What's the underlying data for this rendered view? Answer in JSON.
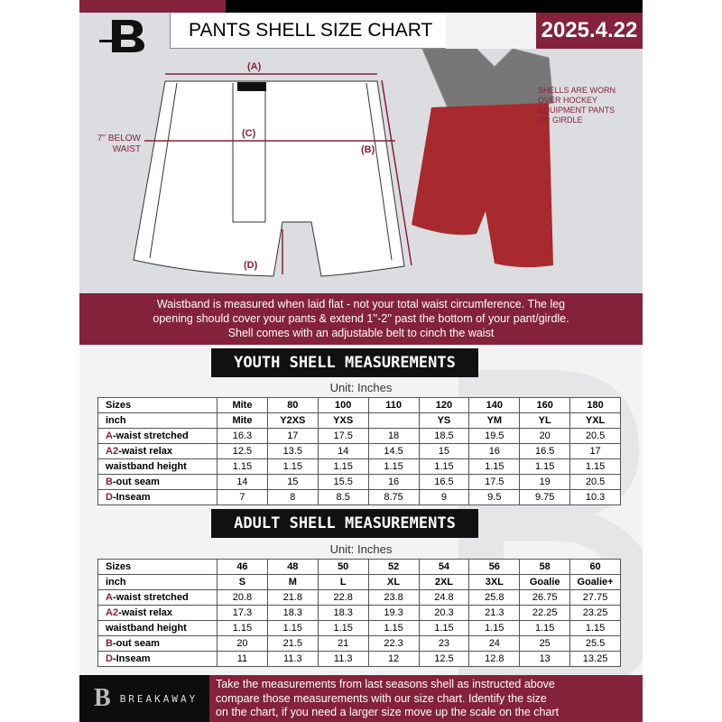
{
  "header": {
    "title": "PANTS SHELL SIZE CHART",
    "date": "2025.4.22"
  },
  "diagram": {
    "label_a": "(A)",
    "label_b": "(B)",
    "label_c": "(C)",
    "label_d": "(D)",
    "c_note": [
      "7'' BELOW",
      "WAIST"
    ],
    "worn_note": [
      "SHELLS ARE WORN",
      "OVER HOCKEY",
      "EQUIPMENT PANTS",
      "OR GIRDLE"
    ]
  },
  "banner": {
    "lines": [
      "Waistband is measured when laid flat - not your total waist circumference. The leg",
      "opening should cover your pants & extend 1''-2'' past the bottom of your pant/girdle.",
      "Shell comes with an adjustable belt to cinch the waist"
    ]
  },
  "youth": {
    "title": "YOUTH SHELL MEASUREMENTS",
    "unit": "Unit: Inches",
    "rows": [
      {
        "pre": "",
        "label": "Sizes",
        "cells": [
          "Mite",
          "80",
          "100",
          "110",
          "120",
          "140",
          "160",
          "180"
        ]
      },
      {
        "pre": "",
        "label": "inch",
        "cells": [
          "Mite",
          "Y2XS",
          "YXS",
          "",
          "YS",
          "YM",
          "YL",
          "YXL"
        ]
      },
      {
        "pre": "A",
        "label": "-waist stretched",
        "cells": [
          "16.3",
          "17",
          "17.5",
          "18",
          "18.5",
          "19.5",
          "20",
          "20.5"
        ]
      },
      {
        "pre": "A2",
        "label": "-waist relax",
        "cells": [
          "12.5",
          "13.5",
          "14",
          "14.5",
          "15",
          "16",
          "16.5",
          "17"
        ]
      },
      {
        "pre": "",
        "label": "waistband height",
        "cells": [
          "1.15",
          "1.15",
          "1.15",
          "1.15",
          "1.15",
          "1.15",
          "1.15",
          "1.15"
        ]
      },
      {
        "pre": "B",
        "label": "-out seam",
        "cells": [
          "14",
          "15",
          "15.5",
          "16",
          "16.5",
          "17.5",
          "19",
          "20.5"
        ]
      },
      {
        "pre": "D",
        "label": "-Inseam",
        "cells": [
          "7",
          "8",
          "8.5",
          "8.75",
          "9",
          "9.5",
          "9.75",
          "10.3"
        ]
      }
    ]
  },
  "adult": {
    "title": "ADULT SHELL MEASUREMENTS",
    "unit": "Unit: Inches",
    "rows": [
      {
        "pre": "",
        "label": "Sizes",
        "cells": [
          "46",
          "48",
          "50",
          "52",
          "54",
          "56",
          "58",
          "60"
        ]
      },
      {
        "pre": "",
        "label": "inch",
        "cells": [
          "S",
          "M",
          "L",
          "XL",
          "2XL",
          "3XL",
          "Goalie",
          "Goalie+"
        ]
      },
      {
        "pre": "A",
        "label": "-waist stretched",
        "cells": [
          "20.8",
          "21.8",
          "22.8",
          "23.8",
          "24.8",
          "25.8",
          "26.75",
          "27.75"
        ]
      },
      {
        "pre": "A2",
        "label": "-waist relax",
        "cells": [
          "17.3",
          "18.3",
          "18.3",
          "19.3",
          "20.3",
          "21.3",
          "22.25",
          "23.25"
        ]
      },
      {
        "pre": "",
        "label": "waistband height",
        "cells": [
          "1.15",
          "1.15",
          "1.15",
          "1.15",
          "1.15",
          "1.15",
          "1.15",
          "1.15"
        ]
      },
      {
        "pre": "B",
        "label": "-out seam",
        "cells": [
          "20",
          "21.5",
          "21",
          "22.3",
          "23",
          "24",
          "25",
          "25.5"
        ]
      },
      {
        "pre": "D",
        "label": "-Inseam",
        "cells": [
          "11",
          "11.3",
          "11.3",
          "12",
          "12.5",
          "12.8",
          "13",
          "13.25"
        ]
      }
    ]
  },
  "footer": {
    "brand": "BREAKAWAY",
    "logo_letter": "B",
    "lines": [
      "Take the measurements from last seasons shell as instructed above",
      "compare those measurements  with our size chart. Identify the size",
      "on the chart, if you need a larger size move up the scale on the chart"
    ]
  },
  "colors": {
    "accent": "#84223c",
    "dark": "#111111"
  }
}
